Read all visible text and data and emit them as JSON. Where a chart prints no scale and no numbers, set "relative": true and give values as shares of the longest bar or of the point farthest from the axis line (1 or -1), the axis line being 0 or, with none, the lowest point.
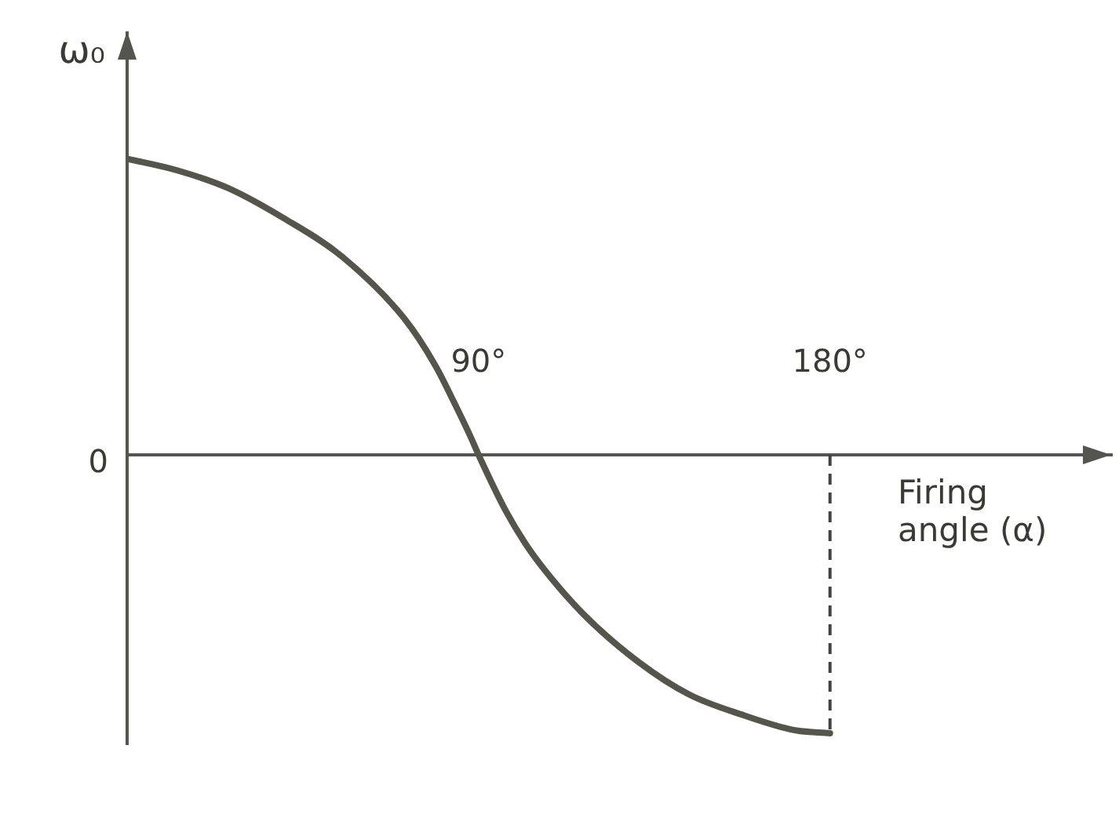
{
  "chart_data": {
    "type": "line",
    "ylabel": "ω₀",
    "xlabel": "Firing angle (α)",
    "relative": true,
    "x": [
      0,
      13,
      26,
      40,
      55,
      71,
      79,
      84,
      88,
      90,
      97,
      102,
      107,
      117,
      131,
      144,
      158,
      171,
      180
    ],
    "values": [
      1,
      0.96,
      0.9,
      0.8,
      0.67,
      0.46,
      0.3,
      0.17,
      0.06,
      0,
      -0.19,
      -0.3,
      -0.39,
      -0.54,
      -0.7,
      -0.81,
      -0.88,
      -0.93,
      -0.94
    ],
    "color": "#55554c",
    "xlim": [
      0,
      252
    ],
    "xticks": [
      {
        "value": 90,
        "label": "90°"
      },
      {
        "value": 180,
        "label": "180°"
      }
    ],
    "ref_lines": [
      {
        "axis": "x",
        "value": 180,
        "line_style": "dashed",
        "color": "#444444"
      }
    ],
    "annotations": [
      "0"
    ],
    "grid": false,
    "legend": false,
    "marker": "none"
  }
}
